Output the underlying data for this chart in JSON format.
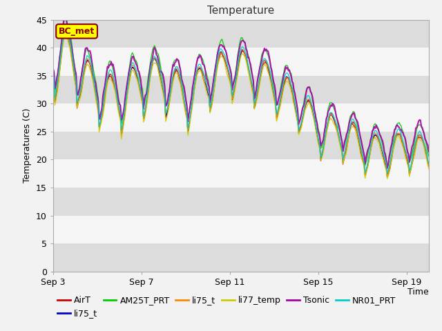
{
  "title": "Temperature",
  "xlabel": "Time",
  "ylabel": "Temperatures (C)",
  "ylim": [
    0,
    45
  ],
  "xlim_days": [
    0,
    17
  ],
  "xtick_labels": [
    "Sep 3",
    "Sep 7",
    "Sep 11",
    "Sep 15",
    "Sep 19"
  ],
  "xtick_positions": [
    0,
    4,
    8,
    12,
    16
  ],
  "ytick_positions": [
    0,
    5,
    10,
    15,
    20,
    25,
    30,
    35,
    40,
    45
  ],
  "annotation_text": "BC_met",
  "annotation_box_color": "#FFFF00",
  "annotation_border_color": "#8B0000",
  "background_plot": "#FFFFFF",
  "background_outer": "#F2F2F2",
  "zebra_colors": [
    "#DCDCDC",
    "#F5F5F5"
  ],
  "series": [
    {
      "name": "AirT",
      "color": "#CC0000",
      "lw": 1.0
    },
    {
      "name": "li75_t",
      "color": "#0000CC",
      "lw": 1.0
    },
    {
      "name": "AM25T_PRT",
      "color": "#00CC00",
      "lw": 1.0
    },
    {
      "name": "li75_t",
      "color": "#FF8800",
      "lw": 1.0
    },
    {
      "name": "li77_temp",
      "color": "#CCCC00",
      "lw": 1.0
    },
    {
      "name": "Tsonic",
      "color": "#AA00AA",
      "lw": 1.5
    },
    {
      "name": "NR01_PRT",
      "color": "#00CCCC",
      "lw": 1.0
    }
  ],
  "title_fontsize": 11,
  "axis_label_fontsize": 9,
  "tick_fontsize": 9,
  "legend_fontsize": 9,
  "figsize": [
    6.4,
    4.8
  ],
  "dpi": 100
}
